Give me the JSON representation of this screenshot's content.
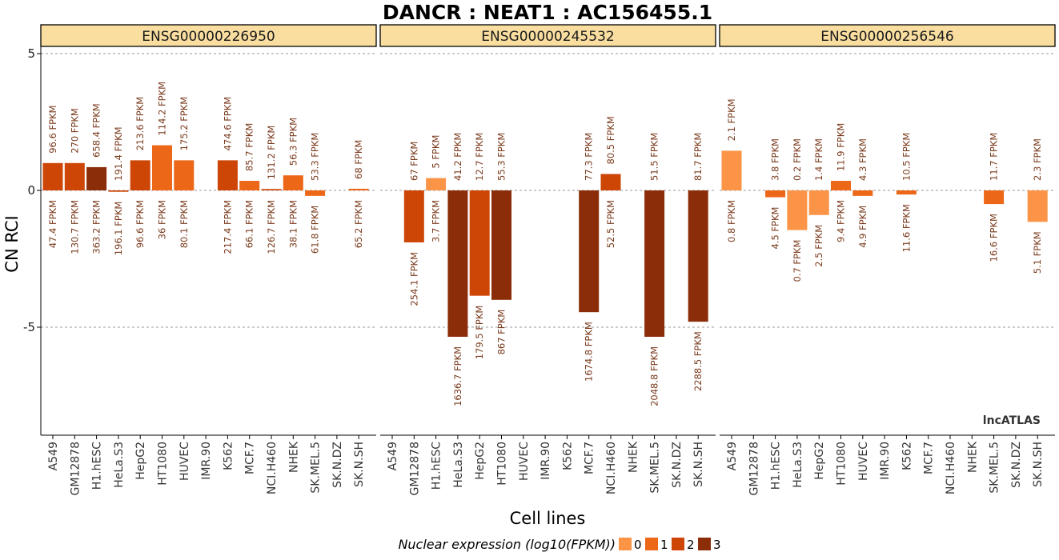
{
  "chart_data": {
    "type": "bar",
    "title": "DANCR : NEAT1 : AC156455.1",
    "xlabel": "Cell lines",
    "ylabel": "CN RCI",
    "ylim": [
      -9,
      5
    ],
    "yticks": [
      5,
      0,
      -5
    ],
    "grid": "dashed at tick values",
    "categories": [
      "A549",
      "GM12878",
      "H1.hESC",
      "HeLa.S3",
      "HepG2",
      "HT1080",
      "HUVEC",
      "IMR.90",
      "K562",
      "MCF.7",
      "NCI.H460",
      "NHEK",
      "SK.MEL.5",
      "SK.N.DZ",
      "SK.N.SH"
    ],
    "legend": {
      "title": "Nuclear expression (log10(FPKM))",
      "position": "bottom",
      "levels": [
        {
          "label": "0",
          "color": "#fb9446"
        },
        {
          "label": "1",
          "color": "#ed6718"
        },
        {
          "label": "2",
          "color": "#cd4606"
        },
        {
          "label": "3",
          "color": "#8b2d08"
        }
      ]
    },
    "watermark": "lncATLAS",
    "panels": [
      {
        "name": "ENSG00000226950",
        "bars": [
          {
            "cell": "A549",
            "value": 1.0,
            "level": 2,
            "cyto": "96.6 FPKM",
            "nuc": "47.4 FPKM"
          },
          {
            "cell": "GM12878",
            "value": 1.0,
            "level": 2,
            "cyto": "270 FPKM",
            "nuc": "130.7 FPKM"
          },
          {
            "cell": "H1.hESC",
            "value": 0.85,
            "level": 3,
            "cyto": "658.4 FPKM",
            "nuc": "363.2 FPKM"
          },
          {
            "cell": "HeLa.S3",
            "value": -0.05,
            "level": 2,
            "cyto": "191.4 FPKM",
            "nuc": "196.1 FPKM"
          },
          {
            "cell": "HepG2",
            "value": 1.1,
            "level": 2,
            "cyto": "213.6 FPKM",
            "nuc": "96.6 FPKM"
          },
          {
            "cell": "HT1080",
            "value": 1.65,
            "level": 1,
            "cyto": "114.2 FPKM",
            "nuc": "36 FPKM"
          },
          {
            "cell": "HUVEC",
            "value": 1.1,
            "level": 1,
            "cyto": "175.2 FPKM",
            "nuc": "80.1 FPKM"
          },
          {
            "cell": "K562",
            "value": 1.1,
            "level": 2,
            "cyto": "474.6 FPKM",
            "nuc": "217.4 FPKM"
          },
          {
            "cell": "MCF.7",
            "value": 0.35,
            "level": 1,
            "cyto": "85.7 FPKM",
            "nuc": "66.1 FPKM"
          },
          {
            "cell": "NCI.H460",
            "value": 0.05,
            "level": 2,
            "cyto": "131.2 FPKM",
            "nuc": "126.7 FPKM"
          },
          {
            "cell": "NHEK",
            "value": 0.55,
            "level": 1,
            "cyto": "56.3 FPKM",
            "nuc": "38.1 FPKM"
          },
          {
            "cell": "SK.MEL.5",
            "value": -0.2,
            "level": 1,
            "cyto": "53.3 FPKM",
            "nuc": "61.8 FPKM"
          },
          {
            "cell": "SK.N.SH",
            "value": 0.06,
            "level": 1,
            "cyto": "68 FPKM",
            "nuc": "65.2 FPKM"
          }
        ]
      },
      {
        "name": "ENSG00000245532",
        "bars": [
          {
            "cell": "GM12878",
            "value": -1.9,
            "level": 2,
            "cyto": "67 FPKM",
            "nuc": "254.1 FPKM"
          },
          {
            "cell": "H1.hESC",
            "value": 0.45,
            "level": 0,
            "cyto": "5 FPKM",
            "nuc": "3.7 FPKM"
          },
          {
            "cell": "HeLa.S3",
            "value": -5.35,
            "level": 3,
            "cyto": "41.2 FPKM",
            "nuc": "1636.7 FPKM"
          },
          {
            "cell": "HepG2",
            "value": -3.85,
            "level": 2,
            "cyto": "12.7 FPKM",
            "nuc": "179.5 FPKM"
          },
          {
            "cell": "HT1080",
            "value": -4.0,
            "level": 3,
            "cyto": "55.3 FPKM",
            "nuc": "867 FPKM"
          },
          {
            "cell": "MCF.7",
            "value": -4.45,
            "level": 3,
            "cyto": "77.3 FPKM",
            "nuc": "1674.8 FPKM"
          },
          {
            "cell": "NCI.H460",
            "value": 0.6,
            "level": 2,
            "cyto": "80.5 FPKM",
            "nuc": "52.5 FPKM"
          },
          {
            "cell": "SK.MEL.5",
            "value": -5.35,
            "level": 3,
            "cyto": "51.5 FPKM",
            "nuc": "2048.8 FPKM"
          },
          {
            "cell": "SK.N.SH",
            "value": -4.8,
            "level": 3,
            "cyto": "81.7 FPKM",
            "nuc": "2288.5 FPKM"
          }
        ]
      },
      {
        "name": "ENSG00000256546",
        "bars": [
          {
            "cell": "A549",
            "value": 1.45,
            "level": 0,
            "cyto": "2.1 FPKM",
            "nuc": "0.8 FPKM"
          },
          {
            "cell": "H1.hESC",
            "value": -0.25,
            "level": 1,
            "cyto": "3.8 FPKM",
            "nuc": "4.5 FPKM"
          },
          {
            "cell": "HeLa.S3",
            "value": -1.45,
            "level": 0,
            "cyto": "0.2 FPKM",
            "nuc": "0.7 FPKM"
          },
          {
            "cell": "HepG2",
            "value": -0.9,
            "level": 0,
            "cyto": "1.4 FPKM",
            "nuc": "2.5 FPKM"
          },
          {
            "cell": "HT1080",
            "value": 0.35,
            "level": 1,
            "cyto": "11.9 FPKM",
            "nuc": "9.4 FPKM"
          },
          {
            "cell": "HUVEC",
            "value": -0.2,
            "level": 1,
            "cyto": "4.3 FPKM",
            "nuc": "4.9 FPKM"
          },
          {
            "cell": "K562",
            "value": -0.15,
            "level": 1,
            "cyto": "10.5 FPKM",
            "nuc": "11.6 FPKM"
          },
          {
            "cell": "SK.MEL.5",
            "value": -0.5,
            "level": 1,
            "cyto": "11.7 FPKM",
            "nuc": "16.6 FPKM"
          },
          {
            "cell": "SK.N.SH",
            "value": -1.15,
            "level": 0,
            "cyto": "2.3 FPKM",
            "nuc": "5.1 FPKM"
          }
        ]
      }
    ]
  }
}
